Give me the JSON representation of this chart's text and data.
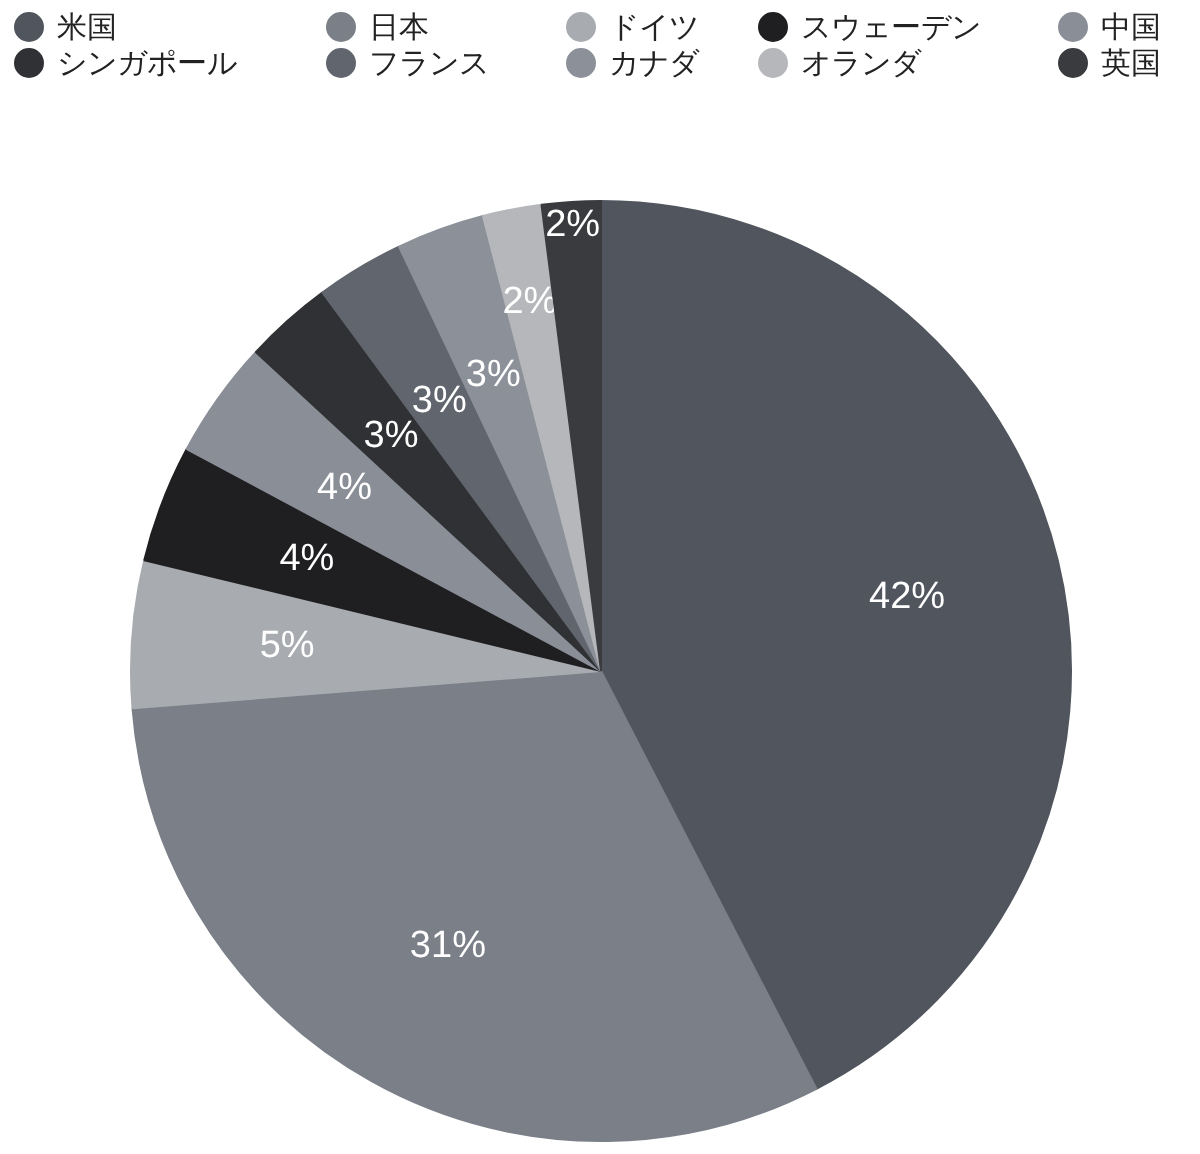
{
  "chart_data": {
    "type": "pie",
    "legend": "top",
    "categories": [
      "米国",
      "日本",
      "ドイツ",
      "スウェーデン",
      "中国",
      "シンガポール",
      "フランス",
      "カナダ",
      "オランダ",
      "英国"
    ],
    "values": [
      42,
      31,
      5,
      4,
      4,
      3,
      3,
      3,
      2,
      2
    ],
    "value_labels": [
      "42%",
      "31%",
      "5%",
      "4%",
      "4%",
      "3%",
      "3%",
      "3%",
      "2%",
      "2%"
    ],
    "colors": [
      "#50555e",
      "#7a7f88",
      "#a8abb0",
      "#1f1f21",
      "#8a8e97",
      "#303134",
      "#61656d",
      "#8c9199",
      "#b5b7ba",
      "#3a3b3e"
    ]
  }
}
